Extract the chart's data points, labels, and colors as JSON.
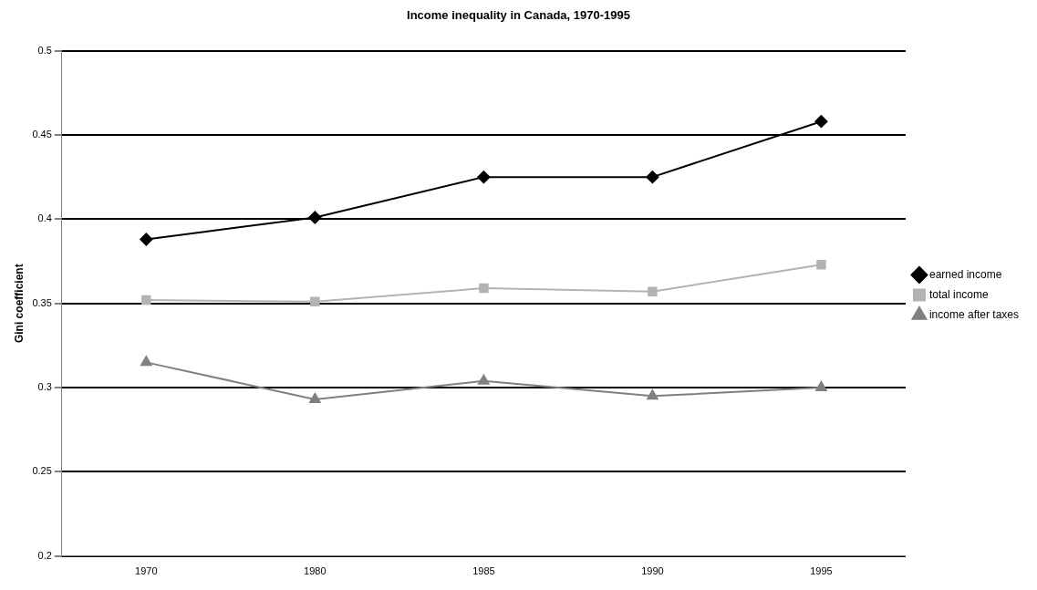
{
  "chart_data": {
    "type": "line",
    "title": "Income inequality in Canada, 1970-1995",
    "ylabel": "Gini coefficient",
    "categories": [
      "1970",
      "1980",
      "1985",
      "1990",
      "1995"
    ],
    "series": [
      {
        "name": "earned income",
        "color": "#000000",
        "marker": "diamond",
        "values": [
          0.388,
          0.401,
          0.425,
          0.425,
          0.458
        ]
      },
      {
        "name": "total income",
        "color": "#b3b3b3",
        "marker": "square",
        "values": [
          0.352,
          0.351,
          0.359,
          0.357,
          0.373
        ]
      },
      {
        "name": "income after taxes",
        "color": "#808080",
        "marker": "triangle",
        "values": [
          0.315,
          0.293,
          0.304,
          0.295,
          0.3
        ]
      }
    ],
    "ylim": [
      0.2,
      0.5
    ],
    "yticks": [
      0.2,
      0.25,
      0.3,
      0.35,
      0.4,
      0.45,
      0.5
    ],
    "grid": "y",
    "legend": "right",
    "line_style": "solid"
  }
}
